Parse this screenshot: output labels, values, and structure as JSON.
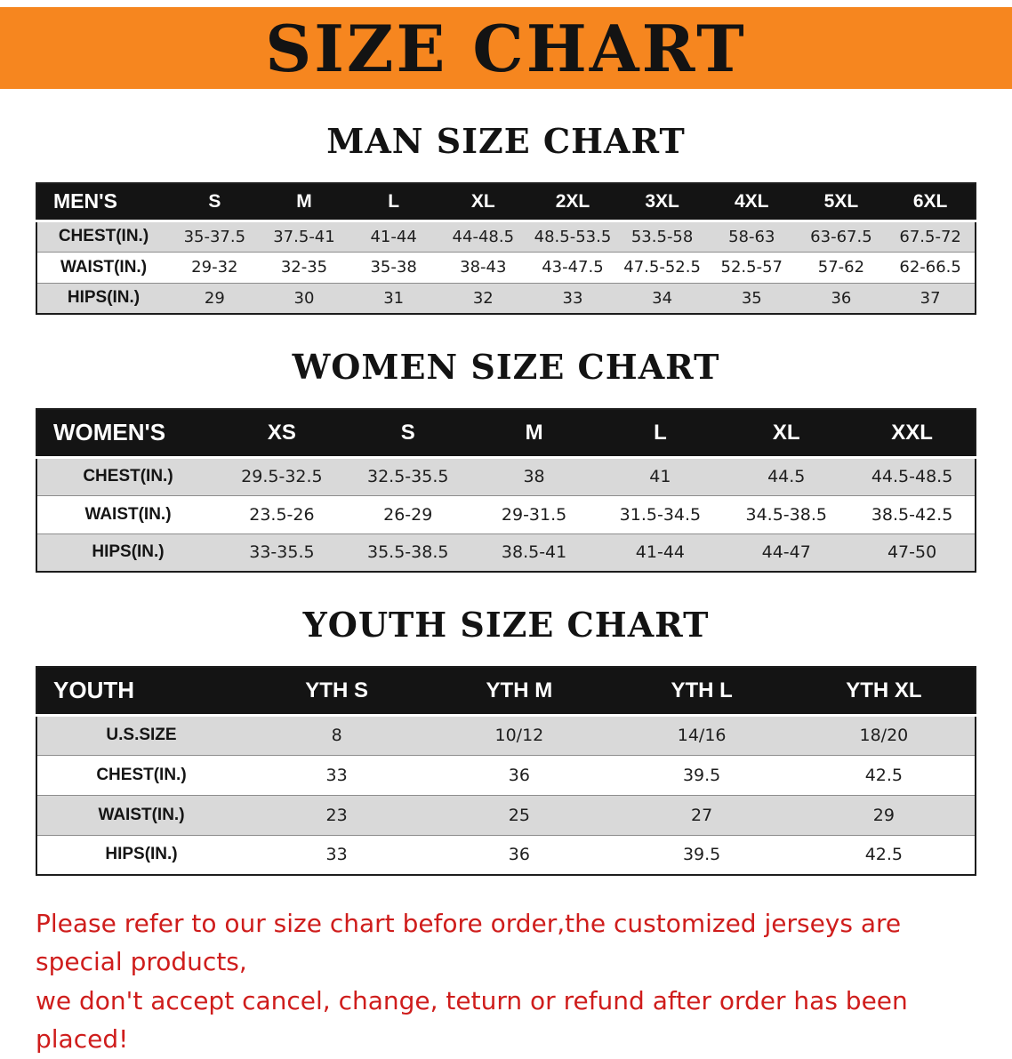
{
  "banner": {
    "title": "SIZE CHART",
    "bg_color": "#f6861f"
  },
  "sections": [
    {
      "id": "men",
      "heading": "MAN SIZE CHART",
      "table": {
        "header": [
          "MEN'S",
          "S",
          "M",
          "L",
          "XL",
          "2XL",
          "3XL",
          "4XL",
          "5XL",
          "6XL"
        ],
        "rows": [
          [
            "CHEST(IN.)",
            "35-37.5",
            "37.5-41",
            "41-44",
            "44-48.5",
            "48.5-53.5",
            "53.5-58",
            "58-63",
            "63-67.5",
            "67.5-72"
          ],
          [
            "WAIST(IN.)",
            "29-32",
            "32-35",
            "35-38",
            "38-43",
            "43-47.5",
            "47.5-52.5",
            "52.5-57",
            "57-62",
            "62-66.5"
          ],
          [
            "HIPS(IN.)",
            "29",
            "30",
            "31",
            "32",
            "33",
            "34",
            "35",
            "36",
            "37"
          ]
        ]
      }
    },
    {
      "id": "women",
      "heading": "WOMEN SIZE CHART",
      "table": {
        "header": [
          "WOMEN'S",
          "XS",
          "S",
          "M",
          "L",
          "XL",
          "XXL"
        ],
        "rows": [
          [
            "CHEST(IN.)",
            "29.5-32.5",
            "32.5-35.5",
            "38",
            "41",
            "44.5",
            "44.5-48.5"
          ],
          [
            "WAIST(IN.)",
            "23.5-26",
            "26-29",
            "29-31.5",
            "31.5-34.5",
            "34.5-38.5",
            "38.5-42.5"
          ],
          [
            "HIPS(IN.)",
            "33-35.5",
            "35.5-38.5",
            "38.5-41",
            "41-44",
            "44-47",
            "47-50"
          ]
        ]
      }
    },
    {
      "id": "youth",
      "heading": "YOUTH SIZE CHART",
      "table": {
        "header": [
          "YOUTH",
          "YTH S",
          "YTH M",
          "YTH L",
          "YTH XL"
        ],
        "rows": [
          [
            "U.S.SIZE",
            "8",
            "10/12",
            "14/16",
            "18/20"
          ],
          [
            "CHEST(IN.)",
            "33",
            "36",
            "39.5",
            "42.5"
          ],
          [
            "WAIST(IN.)",
            "23",
            "25",
            "27",
            "29"
          ],
          [
            "HIPS(IN.)",
            "33",
            "36",
            "39.5",
            "42.5"
          ]
        ]
      }
    }
  ],
  "notice": {
    "color": "#cf1d1c",
    "line1": "Please refer to our size chart before order,the customized jerseys are special products,",
    "line2": "we don't accept cancel, change, teturn or refund after order has been placed!"
  }
}
